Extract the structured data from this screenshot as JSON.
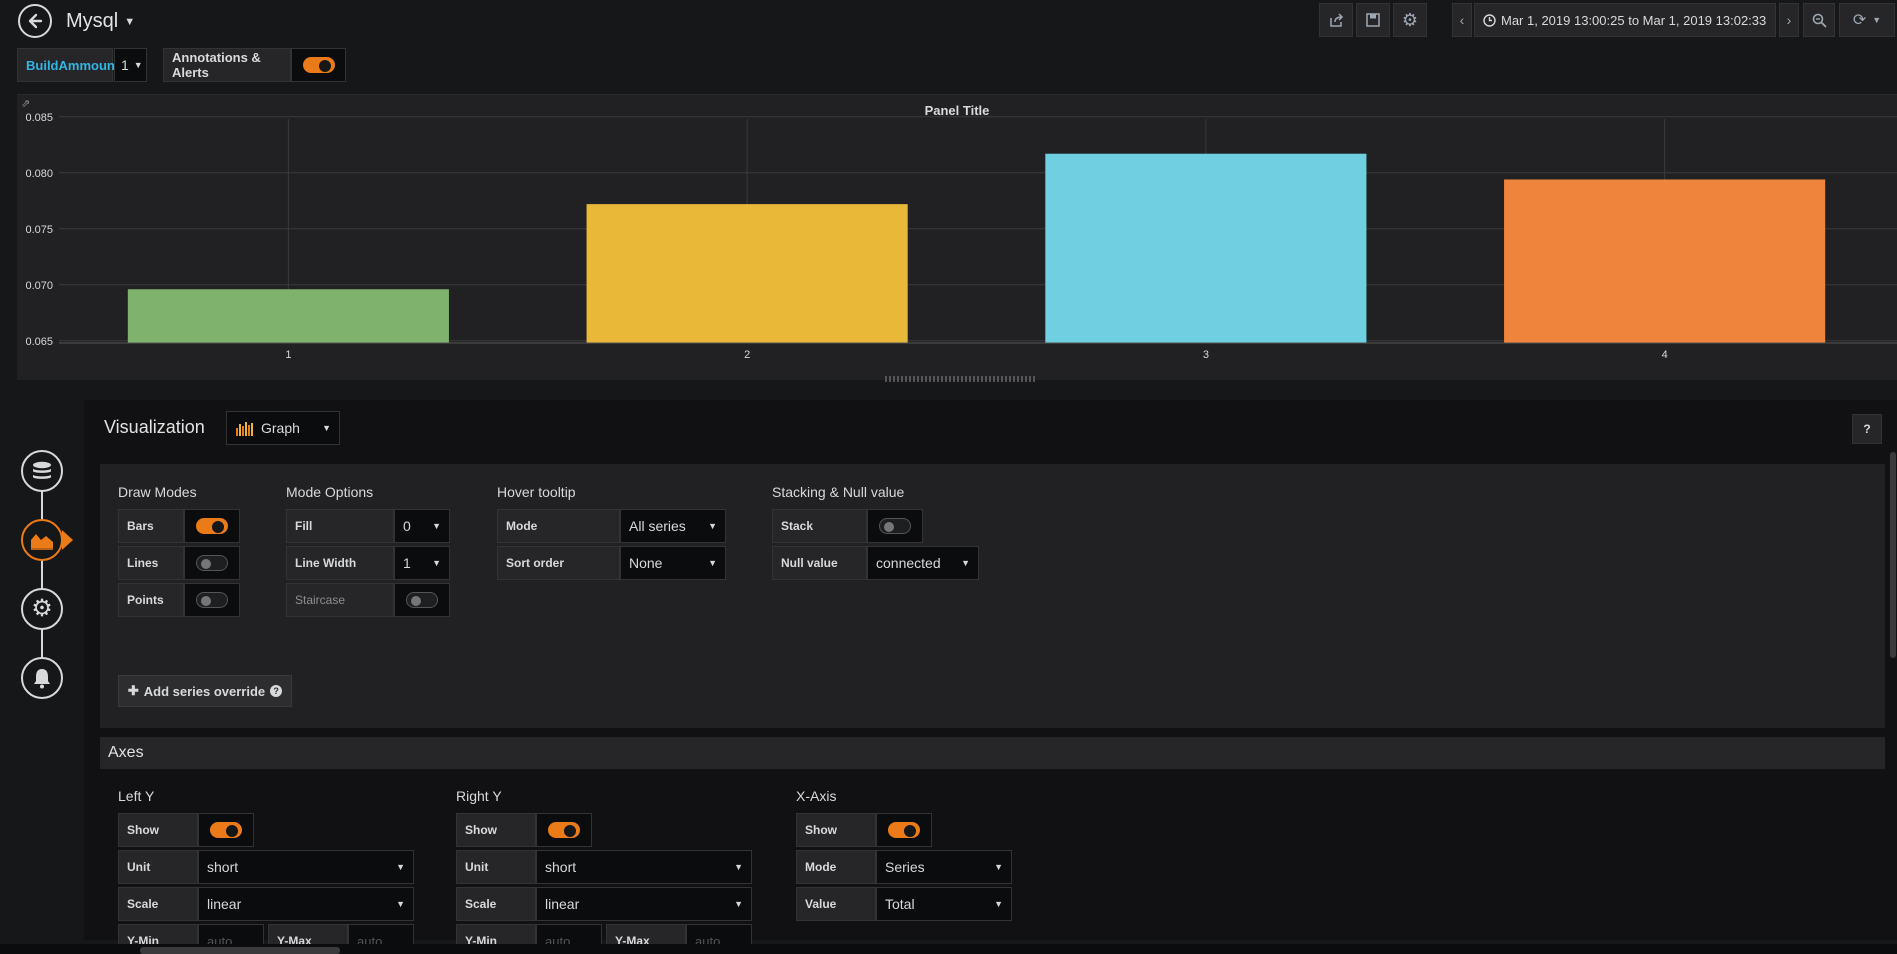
{
  "header": {
    "dashboard_title": "Mysql",
    "time_range": "Mar 1, 2019 13:00:25 to Mar 1, 2019 13:02:33"
  },
  "variables": {
    "build_label": "BuildAmmount",
    "build_value": "1",
    "annotations_label": "Annotations & Alerts"
  },
  "panel": {
    "title": "Panel Title"
  },
  "chart_data": {
    "type": "bar",
    "title": "Panel Title",
    "categories": [
      "1",
      "2",
      "3",
      "4"
    ],
    "values": [
      0.0696,
      0.0772,
      0.0817,
      0.0794
    ],
    "colors": [
      "#7eb26d",
      "#eab839",
      "#6ed0e0",
      "#ef843c"
    ],
    "ylim": [
      0.0648,
      0.0848
    ],
    "yticks": [
      "0.065",
      "0.070",
      "0.075",
      "0.080",
      "0.085"
    ],
    "ytick_values": [
      0.065,
      0.07,
      0.075,
      0.08,
      0.085
    ],
    "xlabel": "",
    "ylabel": ""
  },
  "editor": {
    "visualization_label": "Visualization",
    "visualization_value": "Graph",
    "help": "?",
    "draw_modes": {
      "title": "Draw Modes",
      "bars": "Bars",
      "lines": "Lines",
      "points": "Points"
    },
    "mode_options": {
      "title": "Mode Options",
      "fill_label": "Fill",
      "fill_value": "0",
      "line_width_label": "Line Width",
      "line_width_value": "1",
      "staircase_label": "Staircase"
    },
    "hover_tooltip": {
      "title": "Hover tooltip",
      "mode_label": "Mode",
      "mode_value": "All series",
      "sort_label": "Sort order",
      "sort_value": "None"
    },
    "stacking": {
      "title": "Stacking & Null value",
      "stack_label": "Stack",
      "null_label": "Null value",
      "null_value": "connected"
    },
    "add_override": "Add series override",
    "axes_title": "Axes",
    "left_y": {
      "title": "Left Y",
      "show_label": "Show",
      "unit_label": "Unit",
      "unit_value": "short",
      "scale_label": "Scale",
      "scale_value": "linear",
      "ymin_label": "Y-Min",
      "ymin_placeholder": "auto",
      "ymax_label": "Y-Max",
      "ymax_placeholder": "auto"
    },
    "right_y": {
      "title": "Right Y",
      "show_label": "Show",
      "unit_label": "Unit",
      "unit_value": "short",
      "scale_label": "Scale",
      "scale_value": "linear",
      "ymin_label": "Y-Min",
      "ymin_placeholder": "auto",
      "ymax_label": "Y-Max",
      "ymax_placeholder": "auto"
    },
    "x_axis": {
      "title": "X-Axis",
      "show_label": "Show",
      "mode_label": "Mode",
      "mode_value": "Series",
      "value_label": "Value",
      "value_value": "Total"
    }
  }
}
